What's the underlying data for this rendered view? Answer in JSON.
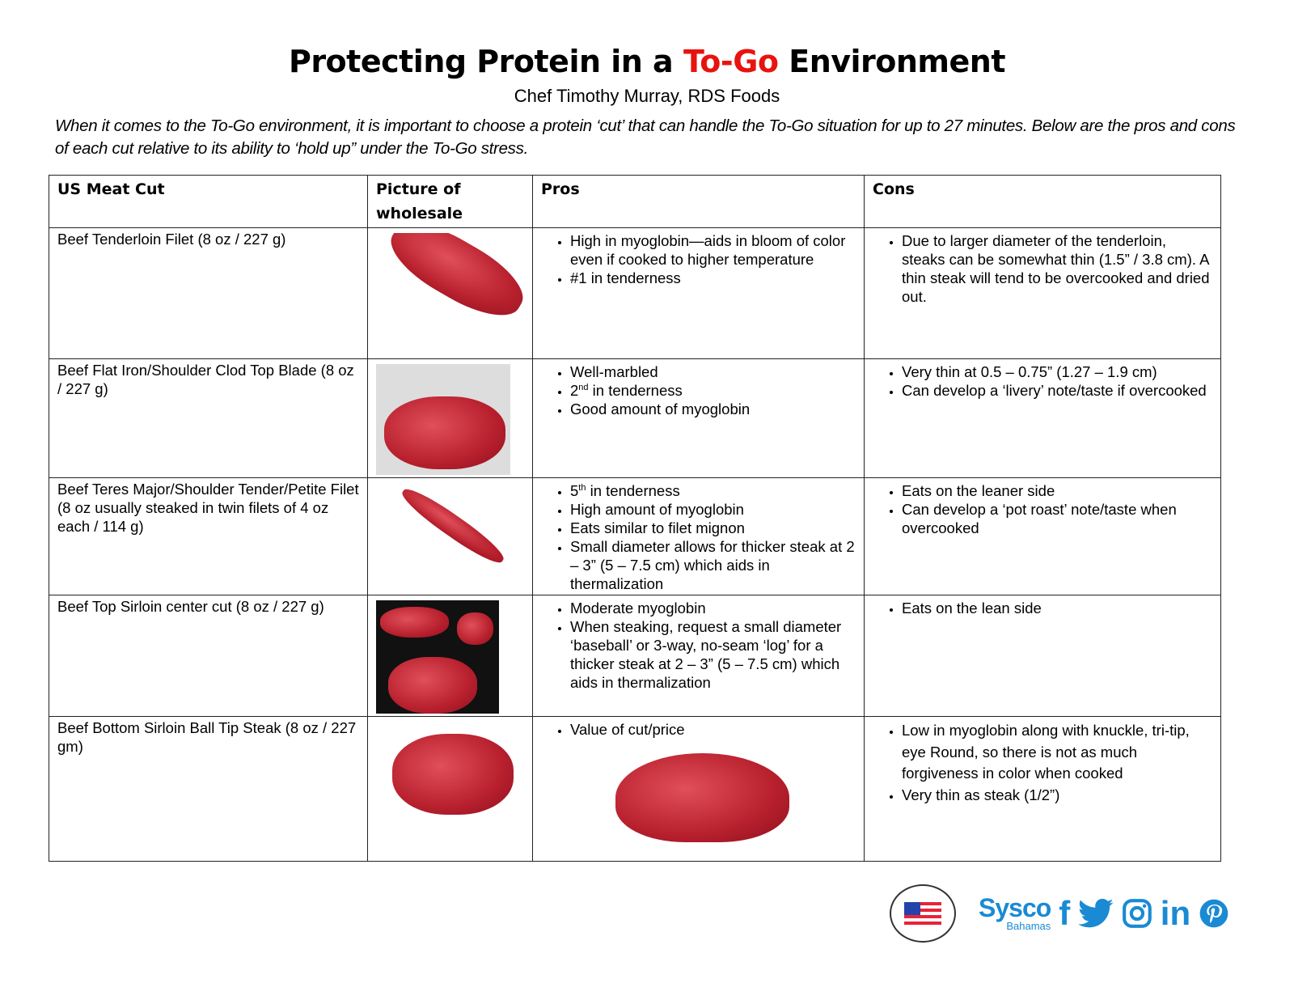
{
  "header": {
    "title_pre": "Protecting Protein in a ",
    "title_red": "To-Go",
    "title_post": " Environment",
    "subtitle": "Chef Timothy Murray, RDS Foods",
    "intro": "When it comes to the To-Go environment, it is important to choose a protein ‘cut’ that can handle the To-Go situation for up to 27 minutes. Below are the pros and cons of each cut relative to its ability to ‘hold up” under the To-Go stress."
  },
  "table": {
    "headers": [
      "US Meat Cut",
      "Picture of wholesale",
      "Pros",
      "Cons"
    ],
    "rows": [
      {
        "cut": "Beef Tenderloin Filet (8 oz / 227 g)",
        "pros": [
          {
            "text": "High in myoglobin—aids in bloom of color even if cooked to higher temperature"
          },
          {
            "text": "#1 in tenderness"
          }
        ],
        "cons": [
          {
            "text": "Due to larger diameter of the tenderloin, steaks can be somewhat thin (1.5” / 3.8 cm). A thin steak will tend to be overcooked and dried out."
          }
        ]
      },
      {
        "cut": "Beef Flat Iron/Shoulder Clod Top Blade (8 oz / 227 g)",
        "pros": [
          {
            "text": "Well-marbled"
          },
          {
            "pre": "2",
            "sup": "nd",
            "text": " in tenderness"
          },
          {
            "text": "Good amount of myoglobin"
          }
        ],
        "cons": [
          {
            "text": "Very thin at 0.5 – 0.75” (1.27 – 1.9 cm)"
          },
          {
            "text": "Can develop a ‘livery’ note/taste if overcooked"
          }
        ]
      },
      {
        "cut": "Beef Teres Major/Shoulder Tender/Petite Filet (8 oz usually steaked in twin filets of 4 oz each / 114 g)",
        "pros": [
          {
            "pre": "5",
            "sup": "th",
            "text": " in tenderness"
          },
          {
            "text": "High amount of myoglobin"
          },
          {
            "text": "Eats similar to filet mignon"
          },
          {
            "text": "Small diameter allows for thicker steak at 2 – 3” (5 – 7.5 cm) which aids in thermalization"
          }
        ],
        "cons": [
          {
            "text": "Eats on the leaner side"
          },
          {
            "text": "Can develop a ‘pot roast’ note/taste when overcooked"
          }
        ]
      },
      {
        "cut": "Beef Top Sirloin center cut (8 oz / 227 g)",
        "pros": [
          {
            "text": "Moderate myoglobin"
          },
          {
            "text": "When steaking, request a small diameter ‘baseball’ or 3-way, no-seam ‘log’ for a thicker steak at 2 – 3” (5 – 7.5 cm) which aids in thermalization"
          }
        ],
        "cons": [
          {
            "text": "Eats on the lean side"
          }
        ]
      },
      {
        "cut": "Beef Bottom Sirloin Ball Tip Steak (8 oz / 227 gm)",
        "pros": [
          {
            "text": "Value of cut/price"
          }
        ],
        "cons": [
          {
            "text": "Low in myoglobin along with knuckle, tri-tip, eye Round, so there is not as much forgiveness in color when cooked",
            "calibri": true
          },
          {
            "text": "Very thin as steak (1/2”)",
            "calibri": true
          }
        ]
      }
    ]
  },
  "footer": {
    "usmef_logo": "U.S. MEAT EXPORT FEDERATION",
    "sysco_logo": "Sysco",
    "sysco_sub": "Bahamas",
    "social_icons": [
      "facebook-icon",
      "twitter-icon",
      "instagram-icon",
      "linkedin-icon",
      "pinterest-icon"
    ]
  },
  "colors": {
    "accent_red": "#e8130f",
    "sysco_blue": "#1a8ad4"
  }
}
